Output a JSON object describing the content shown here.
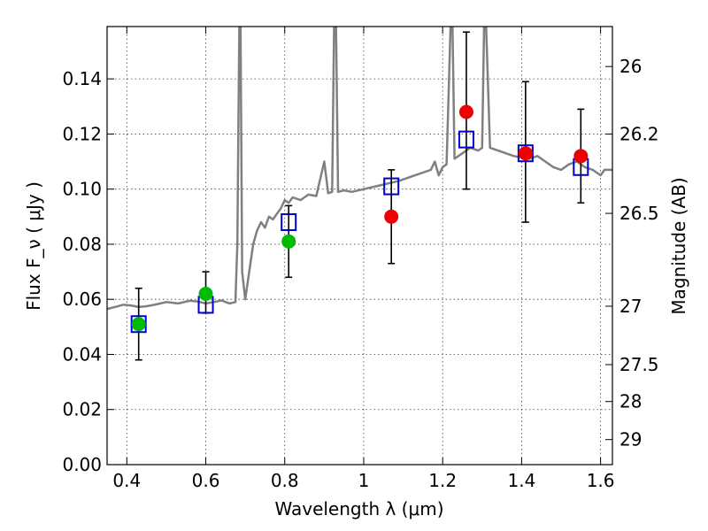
{
  "chart_data": {
    "type": "scatter",
    "xlabel": "Wavelength  λ (μm)",
    "ylabel": "Flux  F_ν  ( μJy )",
    "ylabel_right": "Magnitude (AB)",
    "xlim": [
      0.35,
      1.63
    ],
    "ylim": [
      0.0,
      0.159
    ],
    "grid": true,
    "x_ticks": [
      0.4,
      0.6,
      0.8,
      1.0,
      1.2,
      1.4,
      1.6
    ],
    "x_tick_labels": [
      "0.4",
      "0.6",
      "0.8",
      "1",
      "1.2",
      "1.4",
      "1.6"
    ],
    "y_ticks": [
      0.0,
      0.02,
      0.04,
      0.06,
      0.08,
      0.1,
      0.12,
      0.14
    ],
    "y_tick_labels": [
      "0.00",
      "0.02",
      "0.04",
      "0.06",
      "0.08",
      "0.10",
      "0.12",
      "0.14"
    ],
    "right_ticks": [
      {
        "flux": 0.1445,
        "label": "26"
      },
      {
        "flux": 0.12,
        "label": "26.2"
      },
      {
        "flux": 0.0912,
        "label": "26.5"
      },
      {
        "flux": 0.0575,
        "label": "27"
      },
      {
        "flux": 0.0363,
        "label": "27.5"
      },
      {
        "flux": 0.0229,
        "label": "28"
      },
      {
        "flux": 0.0091,
        "label": "29"
      }
    ],
    "series": [
      {
        "kind": "line",
        "color": "#808080",
        "points": [
          [
            0.35,
            0.0565
          ],
          [
            0.37,
            0.0572
          ],
          [
            0.39,
            0.058
          ],
          [
            0.41,
            0.0578
          ],
          [
            0.43,
            0.0572
          ],
          [
            0.45,
            0.0575
          ],
          [
            0.47,
            0.058
          ],
          [
            0.5,
            0.059
          ],
          [
            0.53,
            0.0585
          ],
          [
            0.56,
            0.0595
          ],
          [
            0.58,
            0.0592
          ],
          [
            0.6,
            0.0585
          ],
          [
            0.62,
            0.059
          ],
          [
            0.64,
            0.0596
          ],
          [
            0.66,
            0.0585
          ],
          [
            0.675,
            0.059
          ],
          [
            0.68,
            0.08
          ],
          [
            0.685,
            0.159
          ],
          [
            0.688,
            0.159
          ],
          [
            0.692,
            0.07
          ],
          [
            0.7,
            0.06
          ],
          [
            0.71,
            0.07
          ],
          [
            0.72,
            0.08
          ],
          [
            0.73,
            0.085
          ],
          [
            0.74,
            0.088
          ],
          [
            0.75,
            0.086
          ],
          [
            0.76,
            0.09
          ],
          [
            0.77,
            0.089
          ],
          [
            0.78,
            0.091
          ],
          [
            0.79,
            0.093
          ],
          [
            0.8,
            0.096
          ],
          [
            0.81,
            0.095
          ],
          [
            0.82,
            0.097
          ],
          [
            0.84,
            0.096
          ],
          [
            0.86,
            0.098
          ],
          [
            0.88,
            0.0975
          ],
          [
            0.9,
            0.11
          ],
          [
            0.91,
            0.0985
          ],
          [
            0.92,
            0.099
          ],
          [
            0.925,
            0.159
          ],
          [
            0.93,
            0.159
          ],
          [
            0.935,
            0.099
          ],
          [
            0.95,
            0.0995
          ],
          [
            0.97,
            0.099
          ],
          [
            1.0,
            0.1
          ],
          [
            1.03,
            0.101
          ],
          [
            1.06,
            0.102
          ],
          [
            1.09,
            0.103
          ],
          [
            1.11,
            0.104
          ],
          [
            1.13,
            0.105
          ],
          [
            1.15,
            0.106
          ],
          [
            1.17,
            0.107
          ],
          [
            1.18,
            0.11
          ],
          [
            1.19,
            0.105
          ],
          [
            1.2,
            0.108
          ],
          [
            1.21,
            0.109
          ],
          [
            1.22,
            0.159
          ],
          [
            1.225,
            0.159
          ],
          [
            1.23,
            0.111
          ],
          [
            1.25,
            0.113
          ],
          [
            1.27,
            0.115
          ],
          [
            1.29,
            0.114
          ],
          [
            1.3,
            0.115
          ],
          [
            1.305,
            0.159
          ],
          [
            1.31,
            0.159
          ],
          [
            1.32,
            0.115
          ],
          [
            1.34,
            0.114
          ],
          [
            1.36,
            0.113
          ],
          [
            1.38,
            0.112
          ],
          [
            1.4,
            0.1115
          ],
          [
            1.42,
            0.111
          ],
          [
            1.44,
            0.112
          ],
          [
            1.46,
            0.11
          ],
          [
            1.48,
            0.108
          ],
          [
            1.5,
            0.107
          ],
          [
            1.52,
            0.109
          ],
          [
            1.54,
            0.11
          ],
          [
            1.56,
            0.108
          ],
          [
            1.58,
            0.107
          ],
          [
            1.6,
            0.105
          ],
          [
            1.61,
            0.107
          ],
          [
            1.63,
            0.107
          ]
        ]
      },
      {
        "kind": "markers",
        "marker": "square",
        "color": "#0000cc",
        "points": [
          [
            0.43,
            0.051
          ],
          [
            0.6,
            0.058
          ],
          [
            0.81,
            0.088
          ],
          [
            1.07,
            0.101
          ],
          [
            1.26,
            0.118
          ],
          [
            1.41,
            0.113
          ],
          [
            1.55,
            0.108
          ]
        ]
      },
      {
        "kind": "markers",
        "marker": "circle",
        "color": "#00bb00",
        "points": [
          [
            0.43,
            0.051
          ],
          [
            0.6,
            0.062
          ],
          [
            0.81,
            0.081
          ]
        ]
      },
      {
        "kind": "markers",
        "marker": "circle",
        "color": "#ee0000",
        "points": [
          [
            1.07,
            0.09
          ],
          [
            1.26,
            0.128
          ],
          [
            1.41,
            0.113
          ],
          [
            1.55,
            0.112
          ]
        ]
      }
    ],
    "error_bars": [
      {
        "x": 0.43,
        "low": 0.038,
        "high": 0.064
      },
      {
        "x": 0.6,
        "low": 0.055,
        "high": 0.07
      },
      {
        "x": 0.81,
        "low": 0.068,
        "high": 0.094
      },
      {
        "x": 1.07,
        "low": 0.073,
        "high": 0.107
      },
      {
        "x": 1.26,
        "low": 0.1,
        "high": 0.157
      },
      {
        "x": 1.41,
        "low": 0.088,
        "high": 0.139
      },
      {
        "x": 1.55,
        "low": 0.095,
        "high": 0.129
      }
    ]
  }
}
